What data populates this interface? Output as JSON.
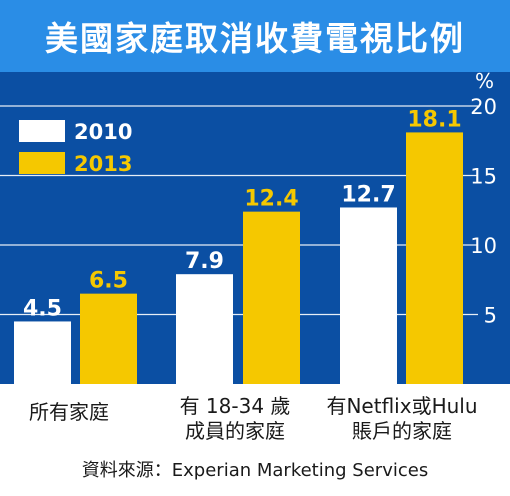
{
  "title": "美國家庭取消收費電視比例",
  "unit": "%",
  "source": "資料來源：Experian Marketing Services",
  "colors": {
    "background": "#0b4fa3",
    "title_bg": "#2a8de6",
    "series_2010": "#ffffff",
    "series_2013": "#f5c800",
    "label_2013": "#f5c800",
    "label_2010": "#ffffff"
  },
  "chart_data": {
    "type": "bar",
    "categories": [
      "所有家庭",
      "有 18-34 歲\n成員的家庭",
      "有Netflix或Hulu\n賬戶的家庭"
    ],
    "series": [
      {
        "name": "2010",
        "values": [
          4.5,
          7.9,
          12.7
        ]
      },
      {
        "name": "2013",
        "values": [
          6.5,
          12.4,
          18.1
        ]
      }
    ],
    "data_labels": [
      [
        "4.5",
        "7.9",
        "12.7"
      ],
      [
        "6.5",
        "12.4",
        "18.1"
      ]
    ],
    "yticks": [
      "5",
      "10",
      "15",
      "20"
    ],
    "ylim": [
      0,
      20
    ],
    "grid": true,
    "legend": "top-left"
  }
}
